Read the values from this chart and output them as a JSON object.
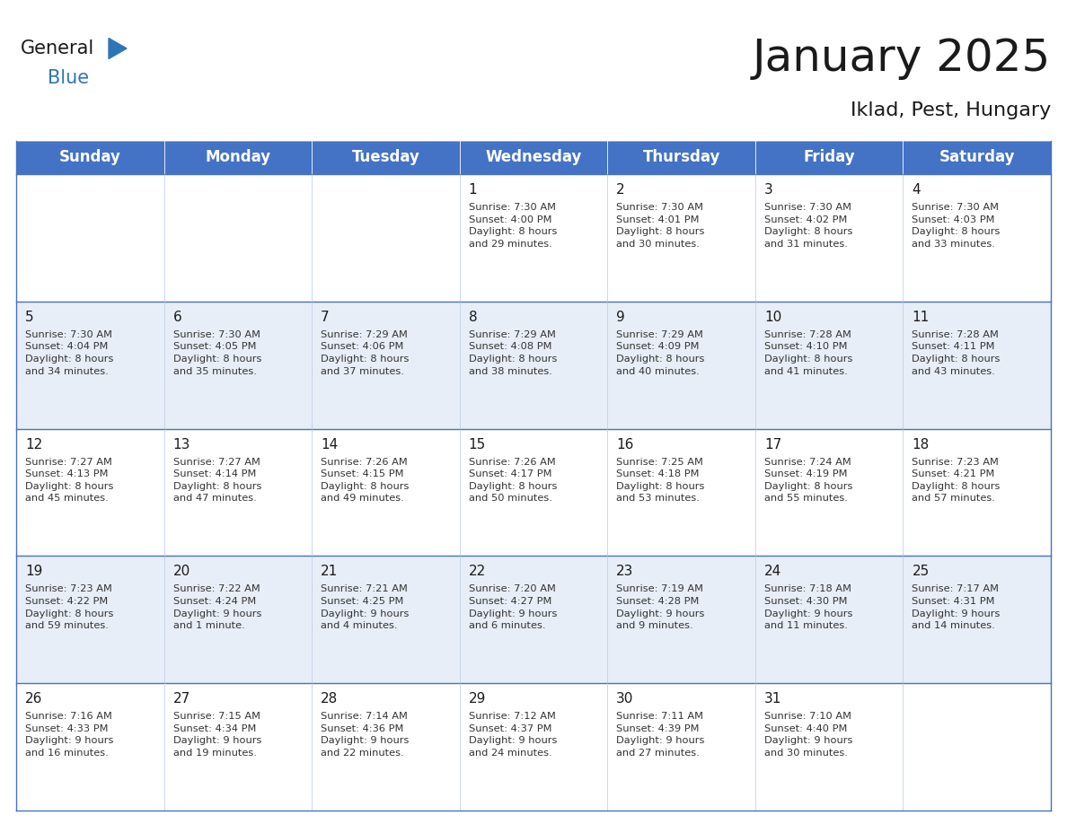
{
  "title": "January 2025",
  "subtitle": "Iklad, Pest, Hungary",
  "header_bg": "#4472C4",
  "header_text_color": "#FFFFFF",
  "row_bg_even": "#FFFFFF",
  "row_bg_odd": "#E8EEF7",
  "border_color": "#4472C4",
  "cell_border_color": "#B8C8E8",
  "days_of_week": [
    "Sunday",
    "Monday",
    "Tuesday",
    "Wednesday",
    "Thursday",
    "Friday",
    "Saturday"
  ],
  "title_fontsize": 36,
  "subtitle_fontsize": 16,
  "header_fontsize": 12,
  "day_num_fontsize": 11,
  "cell_fontsize": 8.2,
  "logo_general_color": "#1a1a1a",
  "logo_blue_color": "#2E75B6",
  "logo_triangle_color": "#2E75B6",
  "calendar": [
    [
      {
        "day": "",
        "info": ""
      },
      {
        "day": "",
        "info": ""
      },
      {
        "day": "",
        "info": ""
      },
      {
        "day": "1",
        "info": "Sunrise: 7:30 AM\nSunset: 4:00 PM\nDaylight: 8 hours\nand 29 minutes."
      },
      {
        "day": "2",
        "info": "Sunrise: 7:30 AM\nSunset: 4:01 PM\nDaylight: 8 hours\nand 30 minutes."
      },
      {
        "day": "3",
        "info": "Sunrise: 7:30 AM\nSunset: 4:02 PM\nDaylight: 8 hours\nand 31 minutes."
      },
      {
        "day": "4",
        "info": "Sunrise: 7:30 AM\nSunset: 4:03 PM\nDaylight: 8 hours\nand 33 minutes."
      }
    ],
    [
      {
        "day": "5",
        "info": "Sunrise: 7:30 AM\nSunset: 4:04 PM\nDaylight: 8 hours\nand 34 minutes."
      },
      {
        "day": "6",
        "info": "Sunrise: 7:30 AM\nSunset: 4:05 PM\nDaylight: 8 hours\nand 35 minutes."
      },
      {
        "day": "7",
        "info": "Sunrise: 7:29 AM\nSunset: 4:06 PM\nDaylight: 8 hours\nand 37 minutes."
      },
      {
        "day": "8",
        "info": "Sunrise: 7:29 AM\nSunset: 4:08 PM\nDaylight: 8 hours\nand 38 minutes."
      },
      {
        "day": "9",
        "info": "Sunrise: 7:29 AM\nSunset: 4:09 PM\nDaylight: 8 hours\nand 40 minutes."
      },
      {
        "day": "10",
        "info": "Sunrise: 7:28 AM\nSunset: 4:10 PM\nDaylight: 8 hours\nand 41 minutes."
      },
      {
        "day": "11",
        "info": "Sunrise: 7:28 AM\nSunset: 4:11 PM\nDaylight: 8 hours\nand 43 minutes."
      }
    ],
    [
      {
        "day": "12",
        "info": "Sunrise: 7:27 AM\nSunset: 4:13 PM\nDaylight: 8 hours\nand 45 minutes."
      },
      {
        "day": "13",
        "info": "Sunrise: 7:27 AM\nSunset: 4:14 PM\nDaylight: 8 hours\nand 47 minutes."
      },
      {
        "day": "14",
        "info": "Sunrise: 7:26 AM\nSunset: 4:15 PM\nDaylight: 8 hours\nand 49 minutes."
      },
      {
        "day": "15",
        "info": "Sunrise: 7:26 AM\nSunset: 4:17 PM\nDaylight: 8 hours\nand 50 minutes."
      },
      {
        "day": "16",
        "info": "Sunrise: 7:25 AM\nSunset: 4:18 PM\nDaylight: 8 hours\nand 53 minutes."
      },
      {
        "day": "17",
        "info": "Sunrise: 7:24 AM\nSunset: 4:19 PM\nDaylight: 8 hours\nand 55 minutes."
      },
      {
        "day": "18",
        "info": "Sunrise: 7:23 AM\nSunset: 4:21 PM\nDaylight: 8 hours\nand 57 minutes."
      }
    ],
    [
      {
        "day": "19",
        "info": "Sunrise: 7:23 AM\nSunset: 4:22 PM\nDaylight: 8 hours\nand 59 minutes."
      },
      {
        "day": "20",
        "info": "Sunrise: 7:22 AM\nSunset: 4:24 PM\nDaylight: 9 hours\nand 1 minute."
      },
      {
        "day": "21",
        "info": "Sunrise: 7:21 AM\nSunset: 4:25 PM\nDaylight: 9 hours\nand 4 minutes."
      },
      {
        "day": "22",
        "info": "Sunrise: 7:20 AM\nSunset: 4:27 PM\nDaylight: 9 hours\nand 6 minutes."
      },
      {
        "day": "23",
        "info": "Sunrise: 7:19 AM\nSunset: 4:28 PM\nDaylight: 9 hours\nand 9 minutes."
      },
      {
        "day": "24",
        "info": "Sunrise: 7:18 AM\nSunset: 4:30 PM\nDaylight: 9 hours\nand 11 minutes."
      },
      {
        "day": "25",
        "info": "Sunrise: 7:17 AM\nSunset: 4:31 PM\nDaylight: 9 hours\nand 14 minutes."
      }
    ],
    [
      {
        "day": "26",
        "info": "Sunrise: 7:16 AM\nSunset: 4:33 PM\nDaylight: 9 hours\nand 16 minutes."
      },
      {
        "day": "27",
        "info": "Sunrise: 7:15 AM\nSunset: 4:34 PM\nDaylight: 9 hours\nand 19 minutes."
      },
      {
        "day": "28",
        "info": "Sunrise: 7:14 AM\nSunset: 4:36 PM\nDaylight: 9 hours\nand 22 minutes."
      },
      {
        "day": "29",
        "info": "Sunrise: 7:12 AM\nSunset: 4:37 PM\nDaylight: 9 hours\nand 24 minutes."
      },
      {
        "day": "30",
        "info": "Sunrise: 7:11 AM\nSunset: 4:39 PM\nDaylight: 9 hours\nand 27 minutes."
      },
      {
        "day": "31",
        "info": "Sunrise: 7:10 AM\nSunset: 4:40 PM\nDaylight: 9 hours\nand 30 minutes."
      },
      {
        "day": "",
        "info": ""
      }
    ]
  ]
}
